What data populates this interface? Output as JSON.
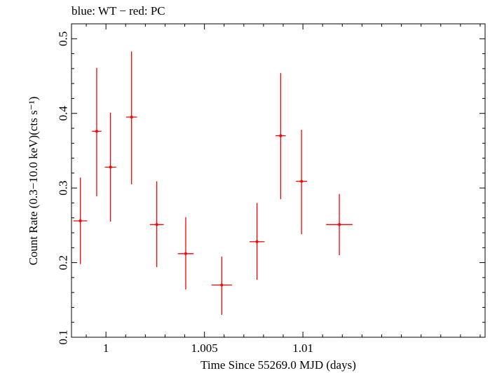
{
  "chart_data": {
    "type": "scatter",
    "title": "blue: WT − red: PC",
    "xlabel": "Time Since 55269.0 MJD (days)",
    "ylabel": "Count Rate (0.3−10.0 keV)(cts s⁻¹)",
    "xlim": [
      0.99825,
      1.01925
    ],
    "ylim": [
      0.1,
      0.52
    ],
    "x_ticks": [
      1,
      1.005,
      1.01
    ],
    "x_tick_labels": [
      "1",
      "1.005",
      "1.01"
    ],
    "y_ticks": [
      0.1,
      0.2,
      0.3,
      0.4,
      0.5
    ],
    "y_tick_labels": [
      "0.1",
      "0.2",
      "0.3",
      "0.4",
      "0.5"
    ],
    "grid": false,
    "series": [
      {
        "name": "PC",
        "color": "#ff0000",
        "points": [
          {
            "x": 0.9987,
            "xerr": 0.00035,
            "y": 0.256,
            "ylo": 0.198,
            "yhi": 0.314
          },
          {
            "x": 0.99953,
            "xerr": 0.00024,
            "y": 0.376,
            "ylo": 0.289,
            "yhi": 0.461
          },
          {
            "x": 1.00023,
            "xerr": 0.00029,
            "y": 0.328,
            "ylo": 0.255,
            "yhi": 0.401
          },
          {
            "x": 1.0013,
            "xerr": 0.00028,
            "y": 0.395,
            "ylo": 0.305,
            "yhi": 0.483
          },
          {
            "x": 1.00258,
            "xerr": 0.00035,
            "y": 0.251,
            "ylo": 0.194,
            "yhi": 0.309
          },
          {
            "x": 1.00405,
            "xerr": 0.0004,
            "y": 0.212,
            "ylo": 0.164,
            "yhi": 0.261
          },
          {
            "x": 1.00588,
            "xerr": 0.00052,
            "y": 0.17,
            "ylo": 0.13,
            "yhi": 0.208
          },
          {
            "x": 1.00767,
            "xerr": 0.00038,
            "y": 0.228,
            "ylo": 0.177,
            "yhi": 0.28
          },
          {
            "x": 1.00887,
            "xerr": 0.00026,
            "y": 0.37,
            "ylo": 0.285,
            "yhi": 0.454
          },
          {
            "x": 1.00993,
            "xerr": 0.00028,
            "y": 0.309,
            "ylo": 0.238,
            "yhi": 0.378
          },
          {
            "x": 1.01185,
            "xerr": 0.00067,
            "y": 0.251,
            "ylo": 0.21,
            "yhi": 0.292
          }
        ]
      }
    ]
  }
}
